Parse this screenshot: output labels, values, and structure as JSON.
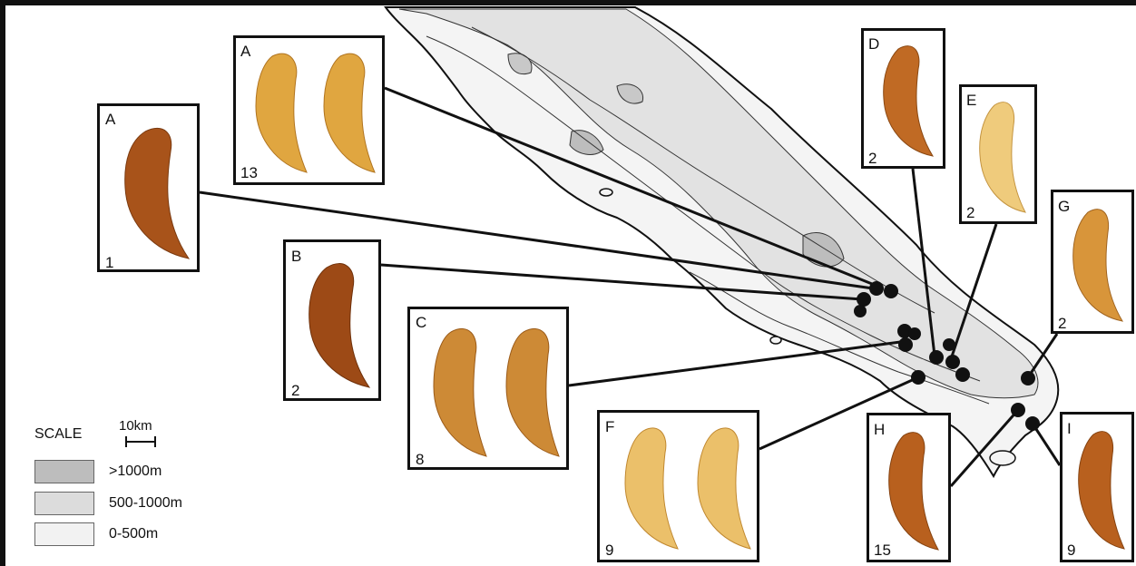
{
  "panels": [
    {
      "letter": "A",
      "count": "1"
    },
    {
      "letter": "A",
      "count": "13"
    },
    {
      "letter": "B",
      "count": "2"
    },
    {
      "letter": "C",
      "count": "8"
    },
    {
      "letter": "D",
      "count": "2"
    },
    {
      "letter": "E",
      "count": "2"
    },
    {
      "letter": "G",
      "count": "2"
    },
    {
      "letter": "F",
      "count": "9"
    },
    {
      "letter": "H",
      "count": "15"
    },
    {
      "letter": "I",
      "count": "9"
    }
  ],
  "legend": {
    "title": "SCALE",
    "scale_text": "10km",
    "items": [
      {
        "label": ">1000m",
        "color": "#bdbdbd"
      },
      {
        "label": "500-1000m",
        "color": "#dcdcdc"
      },
      {
        "label": "0-500m",
        "color": "#f2f2f2"
      }
    ]
  },
  "colors": {
    "specimen_light": "#e8b24a",
    "specimen_dark": "#9a4a12",
    "specimen_pale": "#f0d28a"
  }
}
